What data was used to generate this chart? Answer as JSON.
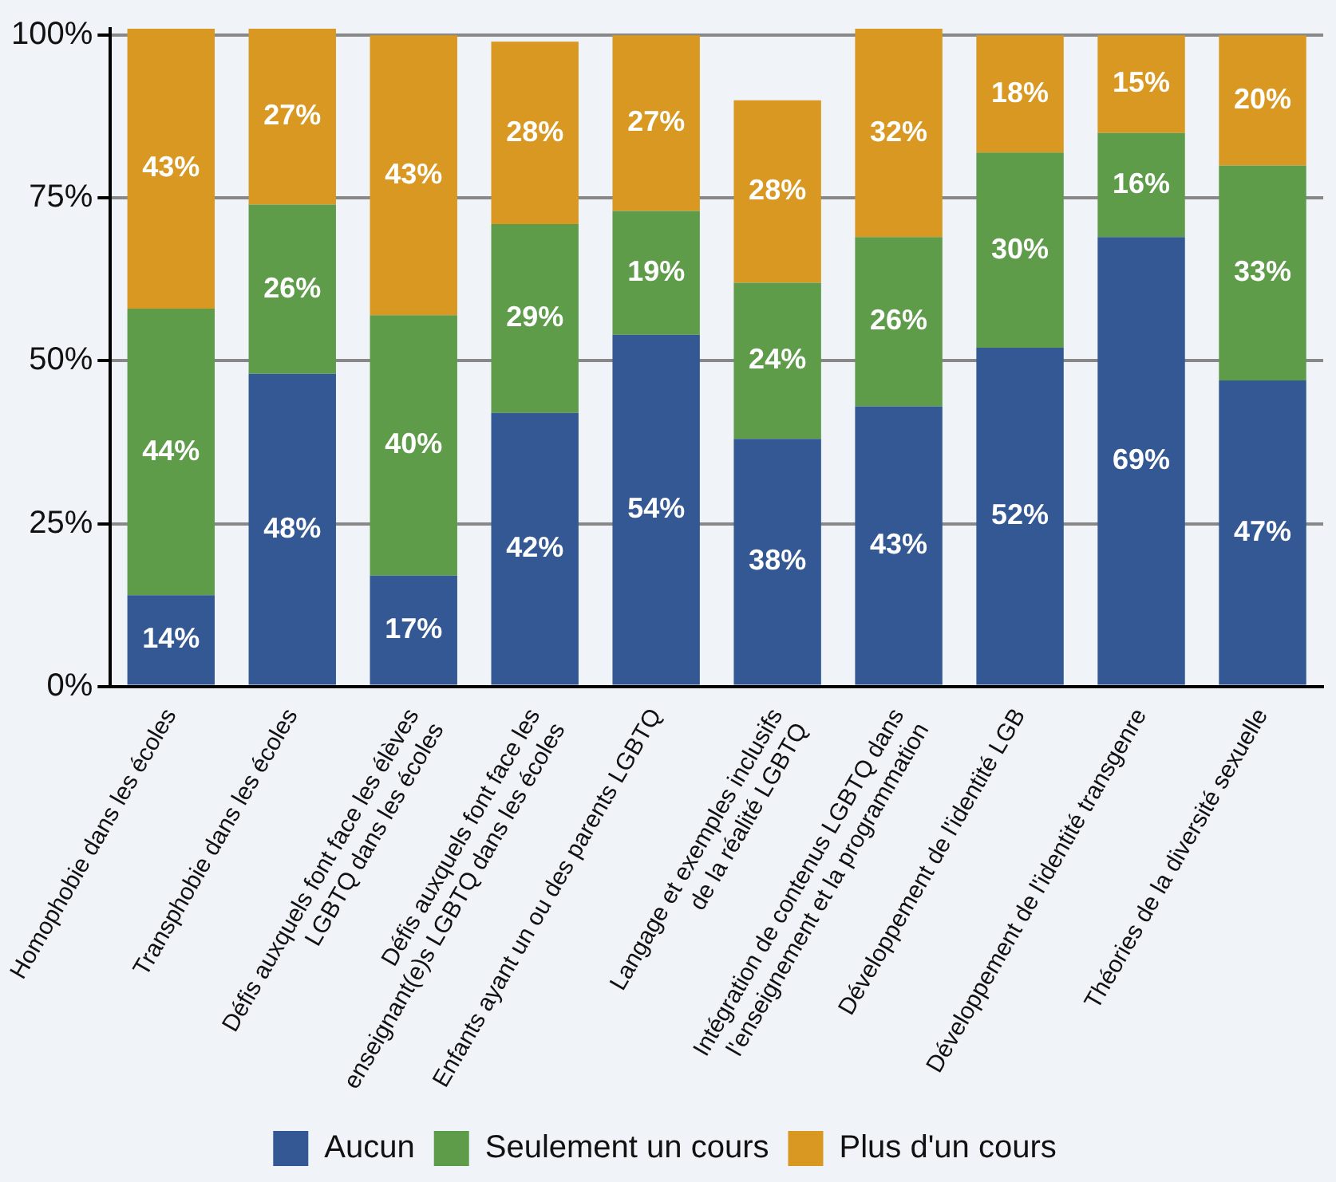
{
  "chart_data": {
    "type": "bar",
    "stacked": true,
    "categories": [
      "Homophobie dans les écoles",
      "Transphobie dans les écoles",
      "Défis auxquels font face les élèves\nLGBTQ dans les écoles",
      "Défis auxquels font face les\nenseignant(e)s LGBTQ dans les écoles",
      "Enfants ayant un ou des parents LGBTQ",
      "Langage et exemples inclusifs\nde la réalité LGBTQ",
      "Intégration de contenus LGBTQ dans\nl'enseignement et la programmation",
      "Développement de l'identité LGB",
      "Développement de l'identité transgenre",
      "Théories de la diversité sexuelle"
    ],
    "series": [
      {
        "name": "Aucun",
        "color": "#335894",
        "values": [
          14,
          48,
          17,
          42,
          54,
          38,
          43,
          52,
          69,
          47
        ],
        "value_labels": [
          "14%",
          "48%",
          "17%",
          "42%",
          "54%",
          "38%",
          "43%",
          "52%",
          "69%",
          "47%"
        ]
      },
      {
        "name": "Seulement un cours",
        "color": "#5e9c4a",
        "values": [
          44,
          26,
          40,
          29,
          19,
          24,
          26,
          30,
          16,
          33
        ],
        "value_labels": [
          "44%",
          "26%",
          "40%",
          "29%",
          "19%",
          "24%",
          "26%",
          "30%",
          "16%",
          "33%"
        ]
      },
      {
        "name": "Plus d'un cours",
        "color": "#d99821",
        "values": [
          43,
          27,
          43,
          28,
          27,
          28,
          32,
          18,
          15,
          20
        ],
        "value_labels": [
          "43%",
          "27%",
          "43%",
          "28%",
          "27%",
          "28%",
          "32%",
          "18%",
          "15%",
          "20%"
        ]
      }
    ],
    "ylim": [
      0,
      101
    ],
    "yticks": [
      {
        "value": 0,
        "label": "0%"
      },
      {
        "value": 25,
        "label": "25%"
      },
      {
        "value": 50,
        "label": "50%"
      },
      {
        "value": 75,
        "label": "75%"
      },
      {
        "value": 100,
        "label": "100%"
      }
    ],
    "grid": "y",
    "legend": "bottom"
  }
}
